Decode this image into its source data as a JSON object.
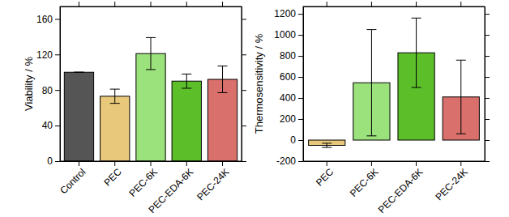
{
  "chart_data": [
    {
      "type": "bar",
      "y_label": "Viability / %",
      "categories": [
        "Control",
        "PEC",
        "PEC-6K",
        "PEC-EDA-6K",
        "PEC-24K"
      ],
      "values": [
        100,
        73,
        121,
        90,
        92
      ],
      "errors": [
        0,
        8,
        18,
        8,
        15
      ],
      "colors": [
        "#555555",
        "#e8c87a",
        "#9be27c",
        "#5cbf2a",
        "#d9706b"
      ],
      "ylim": [
        0,
        174
      ],
      "yticks": [
        0,
        40,
        80,
        120,
        160
      ]
    },
    {
      "type": "bar",
      "y_label": "Thermosensitivity / %",
      "categories": [
        "PEC",
        "PEC-6K",
        "PEC-EDA-6K",
        "PEC-24K"
      ],
      "values": [
        -50,
        545,
        830,
        410
      ],
      "errors": [
        20,
        505,
        330,
        350
      ],
      "colors": [
        "#e8c87a",
        "#9be27c",
        "#5cbf2a",
        "#d9706b"
      ],
      "ylim": [
        -200,
        1270
      ],
      "yticks": [
        -200,
        0,
        200,
        400,
        600,
        800,
        1000,
        1200
      ]
    }
  ]
}
